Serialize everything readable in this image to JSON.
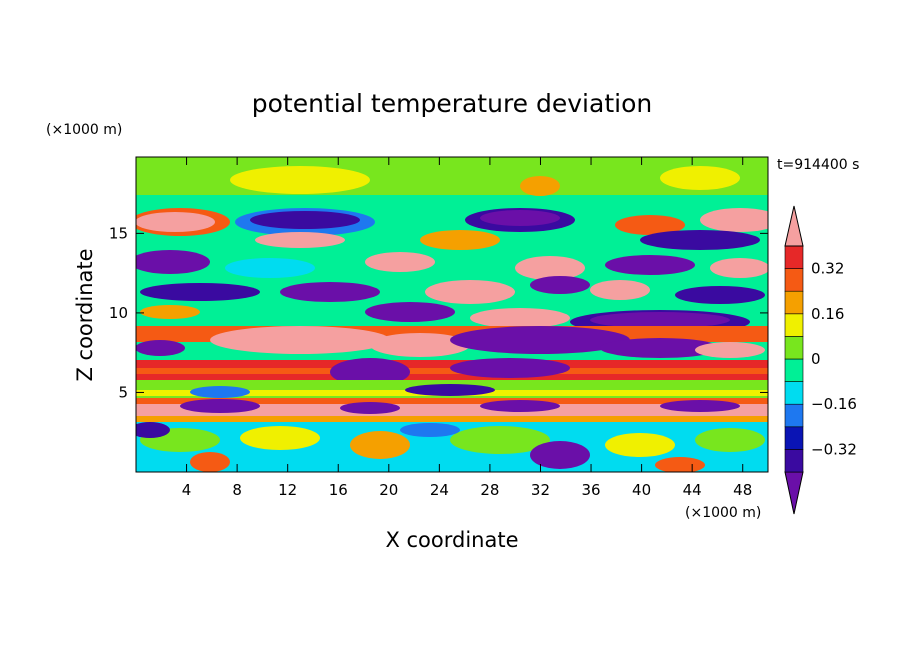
{
  "chart_data": {
    "type": "heatmap",
    "title": "potential temperature deviation",
    "xlabel": "X coordinate",
    "ylabel": "Z coordinate",
    "x_unit": "(×1000 m)",
    "y_unit": "(×1000 m)",
    "time_label": "t=914400 s",
    "xlim": [
      0,
      50
    ],
    "ylim": [
      0,
      19.8
    ],
    "x_ticks": [
      4,
      8,
      12,
      16,
      20,
      24,
      28,
      32,
      36,
      40,
      44,
      48
    ],
    "y_ticks": [
      5,
      10,
      15
    ],
    "colorbar": {
      "levels": [
        -0.4,
        -0.32,
        -0.24,
        -0.16,
        -0.08,
        0,
        0.08,
        0.16,
        0.24,
        0.32,
        0.4
      ],
      "tick_values": [
        0.32,
        0.16,
        0,
        -0.16,
        -0.32
      ],
      "tick_labels": [
        "0.32",
        "0.16",
        "0",
        "−0.16",
        "−0.32"
      ],
      "colors": [
        "#6a0fa8",
        "#3a0aa0",
        "#0a14b4",
        "#1e78f0",
        "#00dcf0",
        "#00f096",
        "#78e61e",
        "#f0f000",
        "#f5a000",
        "#f55a14",
        "#e62828",
        "#f5a0a0"
      ],
      "extend": "both"
    },
    "grid": false
  }
}
